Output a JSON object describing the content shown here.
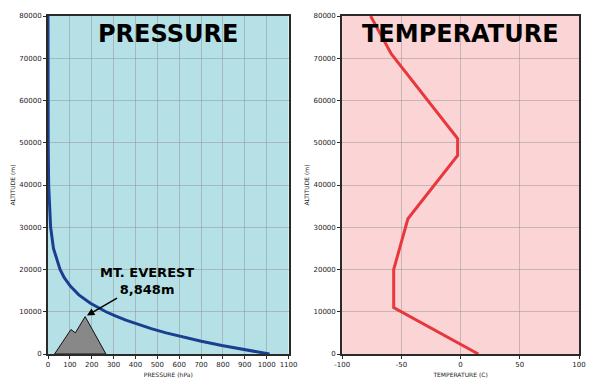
{
  "chart_data": [
    {
      "type": "line",
      "title": "PRESSURE",
      "xlabel": "PRESSURE (hPa)",
      "ylabel": "ALTITUDE (m)",
      "xlim": [
        0,
        1100
      ],
      "xticks": [
        0,
        100,
        200,
        300,
        400,
        500,
        600,
        700,
        800,
        900,
        1000,
        1100
      ],
      "ylim": [
        0,
        80000
      ],
      "yticks": [
        0,
        10000,
        20000,
        30000,
        40000,
        50000,
        60000,
        70000,
        80000
      ],
      "grid": true,
      "series": [
        {
          "color": "#1a3f91",
          "x": [
            1013,
            899,
            795,
            701,
            616,
            540,
            472,
            411,
            356,
            308,
            265,
            194,
            141,
            103,
            75,
            55,
            25,
            12,
            6,
            3,
            1,
            0.2,
            0.05,
            0.01
          ],
          "y": [
            0,
            1000,
            2000,
            3000,
            4000,
            5000,
            6000,
            7000,
            8000,
            9000,
            10000,
            12000,
            14000,
            16000,
            18000,
            20000,
            25000,
            30000,
            35000,
            40000,
            50000,
            60000,
            70000,
            80000
          ]
        }
      ],
      "mountain": {
        "color": "#888888",
        "x": [
          30,
          105,
          125,
          170,
          265
        ],
        "y": [
          0,
          5800,
          5000,
          8848,
          0
        ]
      },
      "annotation": {
        "text": [
          "MT. EVEREST",
          "8,848m"
        ],
        "x": 170,
        "y": 8848
      }
    },
    {
      "type": "line",
      "title": "TEMPERATURE",
      "xlabel": "TEMPERATURE (C)",
      "ylabel": "ALTITUDE (m)",
      "xlim": [
        -100,
        100
      ],
      "xticks": [
        -100,
        -50,
        0,
        50,
        100
      ],
      "ylim": [
        0,
        80000
      ],
      "yticks": [
        0,
        10000,
        20000,
        30000,
        40000,
        50000,
        60000,
        70000,
        80000
      ],
      "grid": true,
      "series": [
        {
          "color": "#e8383d",
          "x": [
            15,
            -56.5,
            -56.5,
            -44.5,
            -2.5,
            -2.5,
            -58.5,
            -76
          ],
          "y": [
            0,
            11000,
            20000,
            32000,
            47000,
            51000,
            71000,
            80000
          ]
        }
      ]
    }
  ]
}
